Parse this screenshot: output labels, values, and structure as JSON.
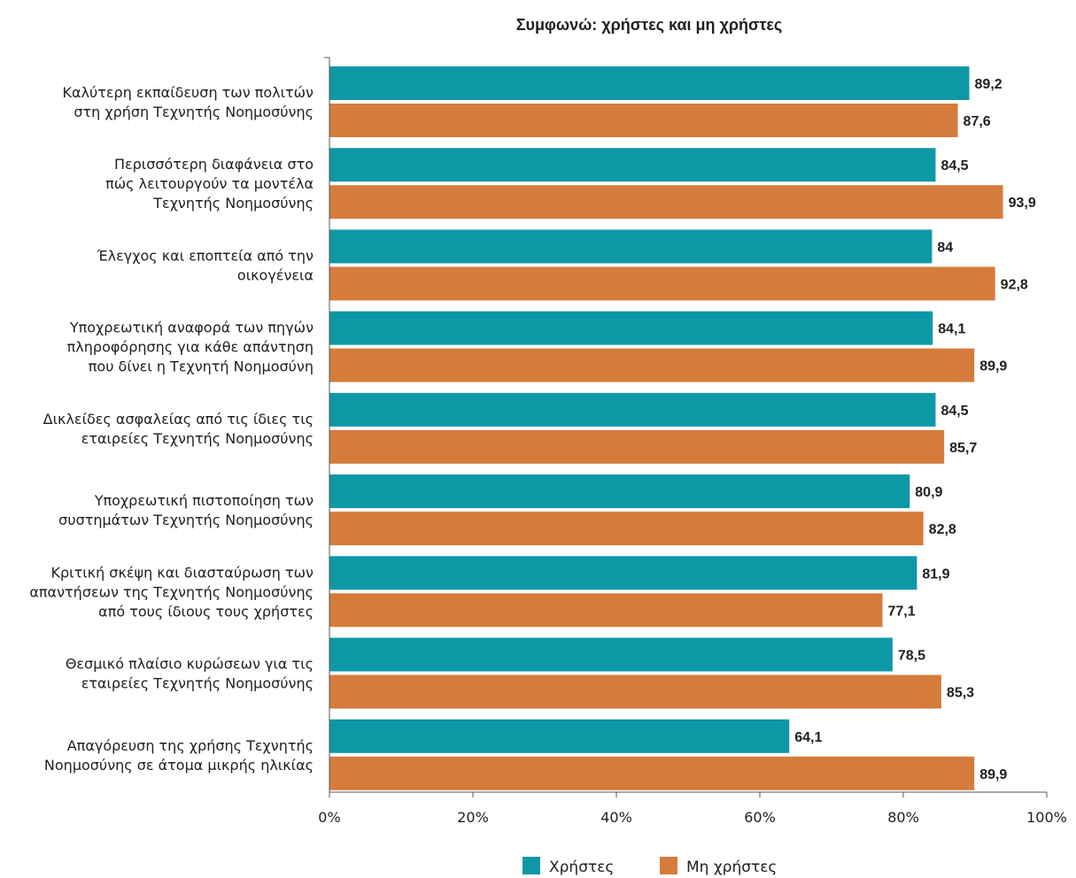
{
  "chart_data": {
    "type": "bar",
    "orientation": "horizontal",
    "title": "Συμφωνώ: χρήστες και μη χρήστες",
    "categories": [
      [
        "Καλύτερη εκπαίδευση των πολιτών",
        "στη χρήση Τεχνητής Νοημοσύνης"
      ],
      [
        "Περισσότερη διαφάνεια στο",
        "πώς λειτουργούν τα μοντέλα",
        "Τεχνητής Νοημοσύνης"
      ],
      [
        "Έλεγχος και εποπτεία από την",
        "οικογένεια"
      ],
      [
        "Υποχρεωτική αναφορά των πηγών",
        "πληροφόρησης για κάθε απάντηση",
        "που δίνει η Τεχνητή Νοημοσύνη"
      ],
      [
        "Δικλείδες ασφαλείας από τις ίδιες τις",
        "εταιρείες Τεχνητής Νοημοσύνης"
      ],
      [
        "Υποχρεωτική πιστοποίηση των",
        "συστημάτων Τεχνητής Νοημοσύνης"
      ],
      [
        "Κριτική σκέψη και διασταύρωση των",
        "απαντήσεων της Τεχνητής Νοημοσύνης",
        "από τους ίδιους τους χρήστες"
      ],
      [
        "Θεσμικό πλαίσιο κυρώσεων για τις",
        "εταιρείες Τεχνητής Νοημοσύνης"
      ],
      [
        "Απαγόρευση της χρήσης Τεχνητής",
        "Νοημοσύνης σε άτομα μικρής ηλικίας"
      ]
    ],
    "series": [
      {
        "name": "Χρήστες",
        "color": "#0e98a6",
        "values": [
          89.2,
          84.5,
          84,
          84.1,
          84.5,
          80.9,
          81.9,
          78.5,
          64.1
        ],
        "labels": [
          "89,2",
          "84,5",
          "84",
          "84,1",
          "84,5",
          "80,9",
          "81,9",
          "78,5",
          "64,1"
        ]
      },
      {
        "name": "Μη χρήστες",
        "color": "#d57c3d",
        "values": [
          87.6,
          93.9,
          92.8,
          89.9,
          85.7,
          82.8,
          77.1,
          85.3,
          89.9
        ],
        "labels": [
          "87,6",
          "93,9",
          "92,8",
          "89,9",
          "85,7",
          "82,8",
          "77,1",
          "85,3",
          "89,9"
        ]
      }
    ],
    "xlim": [
      0,
      100
    ],
    "xticks": [
      0,
      20,
      40,
      60,
      80,
      100
    ],
    "xtick_labels": [
      "0%",
      "20%",
      "40%",
      "60%",
      "80%",
      "100%"
    ],
    "grid": false,
    "legend_position": "bottom-center"
  }
}
